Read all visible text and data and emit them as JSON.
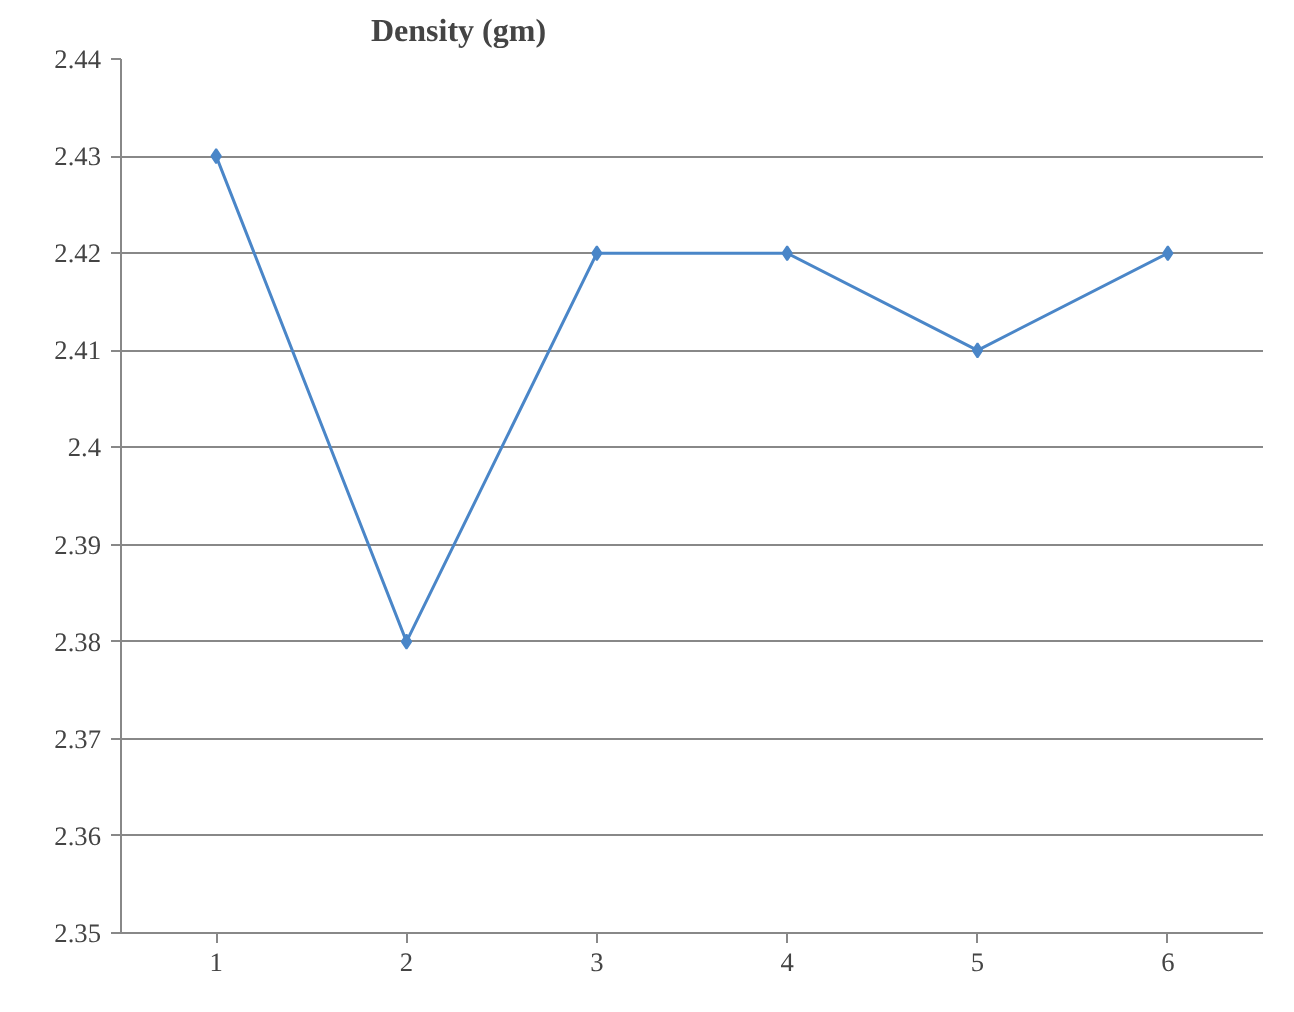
{
  "chart_data": {
    "type": "line",
    "title": "Density (gm)",
    "categories": [
      "1",
      "2",
      "3",
      "4",
      "5",
      "6"
    ],
    "series": [
      {
        "color": "#4a86c8",
        "values": [
          2.43,
          2.38,
          2.42,
          2.42,
          2.41,
          2.42
        ]
      }
    ],
    "ylim": [
      2.35,
      2.44
    ],
    "yticks": [
      2.35,
      2.36,
      2.37,
      2.38,
      2.39,
      2.4,
      2.41,
      2.42,
      2.43,
      2.44
    ],
    "grid": "y",
    "marker": "diamond",
    "line_style": "solid"
  }
}
